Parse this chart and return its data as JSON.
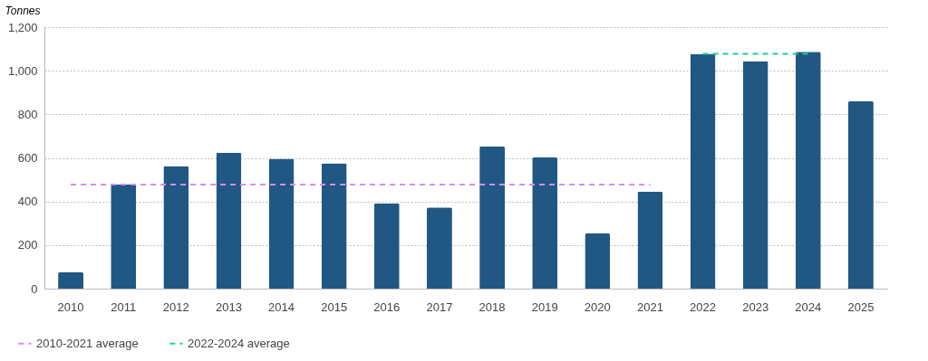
{
  "chart_data": {
    "type": "bar",
    "ylabel": "Tonnes",
    "categories": [
      "2010",
      "2011",
      "2012",
      "2013",
      "2014",
      "2015",
      "2016",
      "2017",
      "2018",
      "2019",
      "2020",
      "2021",
      "2022",
      "2023",
      "2024",
      "2025"
    ],
    "series": [
      {
        "color": "#215783",
        "values": [
          75,
          477,
          563,
          624,
          596,
          575,
          391,
          373,
          653,
          602,
          253,
          445,
          1078,
          1044,
          1087,
          860
        ]
      },
      {
        "type": "line",
        "name": "2010-2021 average",
        "color": "#d58cf0",
        "line_style": "dashed",
        "values": [
          477,
          477,
          477,
          477,
          477,
          477,
          477,
          477,
          477,
          477,
          477,
          477,
          null,
          null,
          null,
          null
        ]
      },
      {
        "type": "line",
        "name": "2022-2024 average",
        "color": "#1ccf94",
        "line_style": "dashed",
        "values": [
          null,
          null,
          null,
          null,
          null,
          null,
          null,
          null,
          null,
          null,
          null,
          null,
          1078,
          1078,
          1078,
          null
        ]
      }
    ],
    "ylim": [
      0,
      1200
    ],
    "yticks": [
      0,
      200,
      400,
      600,
      800,
      {
        "value": 1000,
        "label": "1,000"
      },
      {
        "value": 1200,
        "label": "1,200"
      }
    ],
    "grid": "y",
    "legend": "bottom left"
  }
}
